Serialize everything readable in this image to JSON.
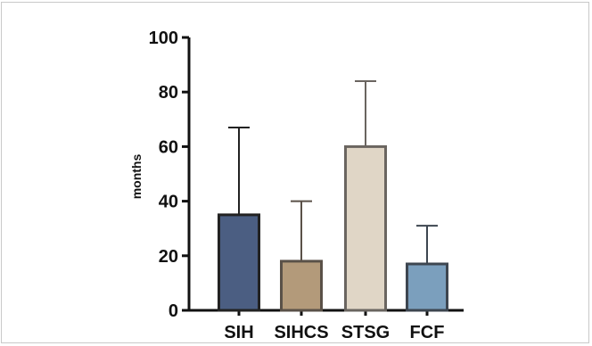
{
  "chart_data": {
    "type": "bar",
    "title": "",
    "xlabel": "",
    "ylabel": "months",
    "ylim": [
      0,
      100
    ],
    "yticks": [
      0,
      20,
      40,
      60,
      80,
      100
    ],
    "categories": [
      "SIH",
      "SIHCS",
      "STSG",
      "FCF"
    ],
    "values": [
      35,
      18,
      60,
      17
    ],
    "error_upper": [
      67,
      40,
      84,
      31
    ],
    "colors": [
      "#4b5e82",
      "#b39a7a",
      "#e0d6c6",
      "#7b9fbd"
    ],
    "edge_colors": [
      "#222222",
      "#5a5148",
      "#6a6560",
      "#3d4650"
    ],
    "grid": false,
    "legend": "none"
  }
}
